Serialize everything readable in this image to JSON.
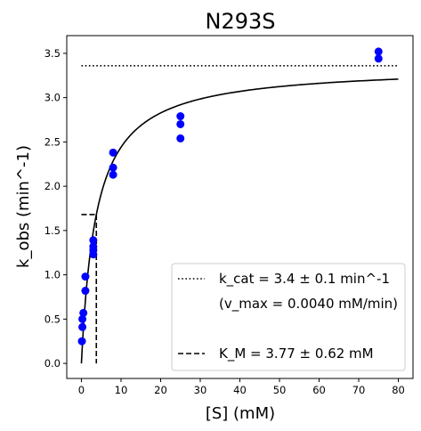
{
  "chart_data": {
    "type": "scatter",
    "title": "N293S",
    "xlabel": "[S] (mM)",
    "ylabel": "k_obs (min^-1)",
    "xlim": [
      -3.7,
      83.7
    ],
    "ylim": [
      -0.17,
      3.7
    ],
    "x_ticks": [
      0,
      10,
      20,
      30,
      40,
      50,
      60,
      70,
      80
    ],
    "y_ticks": [
      0.0,
      0.5,
      1.0,
      1.5,
      2.0,
      2.5,
      3.0,
      3.5
    ],
    "grid": false,
    "legend_placement": "lower-right",
    "points": {
      "color": "#0000ff",
      "x": [
        0.125,
        0.25,
        0.25,
        0.5,
        1.0,
        1.0,
        3.0,
        3.0,
        3.0,
        3.0,
        8.0,
        8.0,
        8.0,
        25.0,
        25.0,
        25.0,
        75.0,
        75.0
      ],
      "y": [
        0.25,
        0.41,
        0.5,
        0.57,
        0.82,
        0.98,
        1.23,
        1.28,
        1.32,
        1.39,
        2.13,
        2.21,
        2.38,
        2.54,
        2.7,
        2.79,
        3.44,
        3.52
      ]
    },
    "fit": {
      "model": "michaelis-menten",
      "kcat": 3.36,
      "KM": 3.77,
      "x_range": [
        0,
        80
      ],
      "color": "#000000"
    },
    "kcat_line": {
      "y": 3.36,
      "x_range": [
        0,
        80
      ],
      "style": "dotted"
    },
    "km_line": {
      "x": 3.77,
      "y_max": 1.68,
      "x_start": 0,
      "style": "dashed"
    },
    "legend": [
      {
        "style": "dotted",
        "text": "k_cat = 3.4 ± 0.1 min^-1"
      },
      {
        "style": "none",
        "text": "(v_max = 0.0040 mM/min)"
      },
      {
        "style": "none",
        "text": ""
      },
      {
        "style": "dashed",
        "text": "K_M = 3.77 ± 0.62 mM"
      }
    ]
  }
}
